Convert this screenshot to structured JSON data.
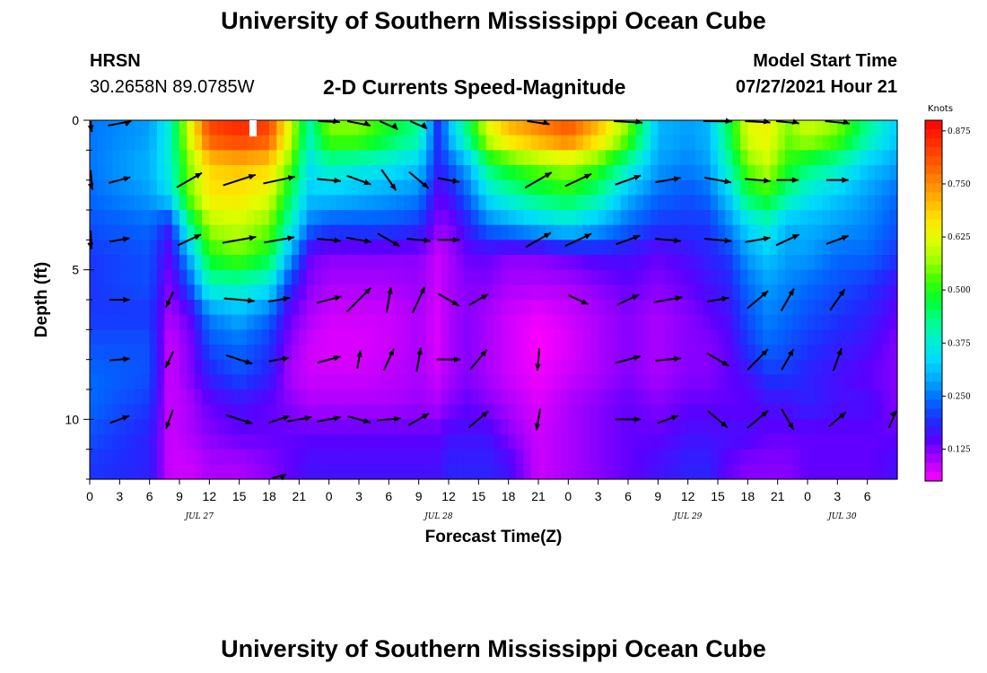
{
  "page_title": "University of Southern Mississippi Ocean Cube",
  "footer_title": "University of Southern Mississippi Ocean Cube",
  "station": {
    "name": "HRSN",
    "coords": "30.2658N  89.0785W"
  },
  "model": {
    "label": "Model Start Time",
    "time": "07/27/2021 Hour 21"
  },
  "colorbar": {
    "unit_label": "Knots",
    "ticks": [
      "0.875",
      "0.750",
      "0.625",
      "0.500",
      "0.375",
      "0.250",
      "0.125"
    ],
    "colors": [
      "#ff00ff",
      "#b000ff",
      "#5a00ff",
      "#1e2cff",
      "#0068ff",
      "#00a6ff",
      "#00d8ff",
      "#00f0d0",
      "#00ff8a",
      "#00ff30",
      "#40ff00",
      "#a0ff00",
      "#e0ff00",
      "#ffe600",
      "#ffb400",
      "#ff8200",
      "#ff5400",
      "#ff2a00",
      "#ff0000"
    ]
  },
  "chart_data": {
    "type": "heatmap",
    "title": "2-D Currents Speed-Magnitude",
    "xlabel": "Forecast Time(Z)",
    "ylabel": "Depth (ft)",
    "xlim": [
      0,
      81
    ],
    "ylim": [
      0,
      12
    ],
    "color_range": [
      0.05,
      0.9
    ],
    "x_ticks": [
      "0",
      "3",
      "6",
      "9",
      "12",
      "15",
      "18",
      "21",
      "0",
      "3",
      "6",
      "9",
      "12",
      "15",
      "18",
      "21",
      "0",
      "3",
      "6",
      "9",
      "12",
      "15",
      "18",
      "21",
      "0",
      "3",
      "6"
    ],
    "y_ticks": [
      "0",
      "5",
      "10"
    ],
    "y_tick_values": [
      0,
      5,
      10
    ],
    "date_labels": [
      {
        "text": "JUL 27",
        "hour": 11
      },
      {
        "text": "JUL 28",
        "hour": 35
      },
      {
        "text": "JUL 29",
        "hour": 60
      },
      {
        "text": "JUL 30",
        "hour": 75.5
      }
    ],
    "depths": [
      0.5,
      1.5,
      2.5,
      3.5,
      4.5,
      5.5,
      6.5,
      7.5,
      8.5,
      9.5,
      10.5,
      11.5
    ],
    "times": [
      0,
      6,
      8,
      10,
      12,
      15,
      18,
      20,
      22,
      24,
      27,
      30,
      33,
      35,
      36,
      38,
      40,
      42,
      45,
      48,
      51,
      54,
      57,
      60,
      62,
      64,
      66,
      68,
      70,
      72,
      75,
      78,
      81
    ],
    "speed": [
      [
        0.25,
        0.28,
        0.38,
        0.62,
        0.82,
        0.85,
        0.82,
        0.62,
        0.4,
        0.55,
        0.55,
        0.48,
        0.42,
        0.18,
        0.3,
        0.45,
        0.62,
        0.7,
        0.75,
        0.8,
        0.7,
        0.55,
        0.3,
        0.28,
        0.3,
        0.45,
        0.62,
        0.64,
        0.55,
        0.6,
        0.55,
        0.42,
        0.32
      ],
      [
        0.25,
        0.3,
        0.38,
        0.55,
        0.68,
        0.7,
        0.68,
        0.55,
        0.35,
        0.4,
        0.38,
        0.36,
        0.32,
        0.18,
        0.22,
        0.3,
        0.45,
        0.5,
        0.55,
        0.58,
        0.52,
        0.4,
        0.28,
        0.26,
        0.28,
        0.4,
        0.55,
        0.6,
        0.5,
        0.45,
        0.4,
        0.32,
        0.28
      ],
      [
        0.24,
        0.28,
        0.35,
        0.55,
        0.66,
        0.66,
        0.62,
        0.46,
        0.32,
        0.32,
        0.3,
        0.28,
        0.26,
        0.14,
        0.16,
        0.24,
        0.35,
        0.4,
        0.45,
        0.48,
        0.42,
        0.3,
        0.24,
        0.22,
        0.24,
        0.32,
        0.46,
        0.5,
        0.42,
        0.36,
        0.32,
        0.28,
        0.24
      ],
      [
        0.22,
        0.24,
        0.18,
        0.42,
        0.58,
        0.6,
        0.55,
        0.4,
        0.25,
        0.22,
        0.22,
        0.22,
        0.2,
        0.12,
        0.12,
        0.18,
        0.25,
        0.28,
        0.32,
        0.35,
        0.3,
        0.24,
        0.2,
        0.2,
        0.2,
        0.26,
        0.34,
        0.38,
        0.3,
        0.3,
        0.28,
        0.26,
        0.22
      ],
      [
        0.2,
        0.22,
        0.14,
        0.3,
        0.5,
        0.54,
        0.48,
        0.3,
        0.14,
        0.12,
        0.12,
        0.12,
        0.12,
        0.08,
        0.1,
        0.14,
        0.14,
        0.12,
        0.12,
        0.14,
        0.16,
        0.16,
        0.14,
        0.16,
        0.18,
        0.2,
        0.28,
        0.32,
        0.28,
        0.28,
        0.24,
        0.24,
        0.2
      ],
      [
        0.2,
        0.22,
        0.12,
        0.22,
        0.4,
        0.4,
        0.36,
        0.2,
        0.12,
        0.1,
        0.1,
        0.1,
        0.11,
        0.08,
        0.1,
        0.12,
        0.12,
        0.1,
        0.1,
        0.1,
        0.12,
        0.14,
        0.12,
        0.14,
        0.16,
        0.18,
        0.24,
        0.28,
        0.26,
        0.24,
        0.22,
        0.2,
        0.16
      ],
      [
        0.2,
        0.2,
        0.1,
        0.14,
        0.26,
        0.3,
        0.24,
        0.14,
        0.1,
        0.08,
        0.08,
        0.08,
        0.1,
        0.07,
        0.1,
        0.12,
        0.1,
        0.08,
        0.06,
        0.08,
        0.1,
        0.12,
        0.1,
        0.12,
        0.14,
        0.16,
        0.22,
        0.26,
        0.24,
        0.22,
        0.2,
        0.18,
        0.14
      ],
      [
        0.22,
        0.22,
        0.08,
        0.12,
        0.22,
        0.24,
        0.2,
        0.12,
        0.08,
        0.07,
        0.07,
        0.08,
        0.1,
        0.07,
        0.1,
        0.12,
        0.1,
        0.08,
        0.05,
        0.07,
        0.1,
        0.12,
        0.1,
        0.12,
        0.12,
        0.14,
        0.2,
        0.24,
        0.22,
        0.2,
        0.18,
        0.16,
        0.12
      ],
      [
        0.24,
        0.22,
        0.08,
        0.12,
        0.18,
        0.22,
        0.18,
        0.1,
        0.08,
        0.08,
        0.08,
        0.09,
        0.1,
        0.08,
        0.1,
        0.12,
        0.1,
        0.08,
        0.06,
        0.08,
        0.1,
        0.12,
        0.1,
        0.12,
        0.12,
        0.14,
        0.16,
        0.2,
        0.2,
        0.18,
        0.16,
        0.14,
        0.12
      ],
      [
        0.24,
        0.2,
        0.08,
        0.1,
        0.14,
        0.16,
        0.14,
        0.12,
        0.1,
        0.1,
        0.1,
        0.1,
        0.11,
        0.1,
        0.12,
        0.14,
        0.12,
        0.1,
        0.07,
        0.1,
        0.12,
        0.14,
        0.12,
        0.14,
        0.14,
        0.14,
        0.14,
        0.16,
        0.16,
        0.18,
        0.16,
        0.16,
        0.12
      ],
      [
        0.22,
        0.18,
        0.08,
        0.1,
        0.12,
        0.14,
        0.14,
        0.14,
        0.14,
        0.14,
        0.14,
        0.14,
        0.14,
        0.14,
        0.16,
        0.16,
        0.16,
        0.12,
        0.08,
        0.1,
        0.12,
        0.14,
        0.14,
        0.16,
        0.16,
        0.16,
        0.16,
        0.14,
        0.14,
        0.14,
        0.14,
        0.14,
        0.14
      ],
      [
        0.2,
        0.18,
        0.08,
        0.08,
        0.1,
        0.1,
        0.12,
        0.14,
        0.16,
        0.16,
        0.16,
        0.16,
        0.16,
        0.16,
        0.18,
        0.18,
        0.18,
        0.16,
        0.08,
        0.1,
        0.12,
        0.14,
        0.16,
        0.18,
        0.18,
        0.14,
        0.12,
        0.12,
        0.12,
        0.14,
        0.14,
        0.14,
        0.16
      ]
    ],
    "vector_depths": [
      0,
      2,
      4,
      6,
      8,
      10,
      12
    ],
    "vectors": [
      {
        "t": 0,
        "rows": [
          [
            0.28,
            80
          ],
          [
            0.24,
            75
          ],
          [
            0.22,
            80
          ],
          [
            0,
            0
          ],
          [
            0,
            0
          ],
          [
            0,
            0
          ],
          [
            0,
            0
          ]
        ]
      },
      {
        "t": 3,
        "rows": [
          [
            0.3,
            -25
          ],
          [
            0.26,
            -15
          ],
          [
            0.24,
            -10
          ],
          [
            0.24,
            0
          ],
          [
            0.24,
            -5
          ],
          [
            0.24,
            -20
          ],
          [
            0,
            0
          ]
        ]
      },
      {
        "t": 8,
        "rows": [
          [
            0,
            0
          ],
          [
            0,
            0
          ],
          [
            0,
            0
          ],
          [
            0.2,
            115
          ],
          [
            0.22,
            115
          ],
          [
            0.24,
            110
          ],
          [
            0,
            0
          ]
        ]
      },
      {
        "t": 10,
        "rows": [
          [
            0,
            0
          ],
          [
            0.34,
            -30
          ],
          [
            0.3,
            -25
          ],
          [
            0,
            0
          ],
          [
            0,
            0
          ],
          [
            0,
            0
          ],
          [
            0,
            0
          ]
        ]
      },
      {
        "t": 15,
        "rows": [
          [
            0,
            0
          ],
          [
            0.4,
            -18
          ],
          [
            0.4,
            -10
          ],
          [
            0.36,
            5
          ],
          [
            0.32,
            18
          ],
          [
            0.32,
            18
          ],
          [
            0,
            0
          ]
        ]
      },
      {
        "t": 19,
        "rows": [
          [
            0,
            0
          ],
          [
            0.38,
            -12
          ],
          [
            0.36,
            -10
          ],
          [
            0.26,
            -10
          ],
          [
            0.24,
            -10
          ],
          [
            0.26,
            -18
          ],
          [
            0.2,
            -35
          ]
        ]
      },
      {
        "t": 21,
        "rows": [
          [
            0,
            0
          ],
          [
            0,
            0
          ],
          [
            0,
            0
          ],
          [
            0,
            0
          ],
          [
            0,
            0
          ],
          [
            0.3,
            -10
          ],
          [
            0,
            0
          ]
        ]
      },
      {
        "t": 24,
        "rows": [
          [
            0.26,
            10
          ],
          [
            0.28,
            5
          ],
          [
            0.28,
            5
          ],
          [
            0.3,
            -15
          ],
          [
            0.28,
            -15
          ],
          [
            0.28,
            -10
          ],
          [
            0,
            0
          ]
        ]
      },
      {
        "t": 27,
        "rows": [
          [
            0.3,
            25
          ],
          [
            0.3,
            20
          ],
          [
            0.3,
            10
          ],
          [
            0.4,
            -45
          ],
          [
            0.22,
            -80
          ],
          [
            0.28,
            15
          ],
          [
            0,
            0
          ]
        ]
      },
      {
        "t": 30,
        "rows": [
          [
            0.3,
            45
          ],
          [
            0.3,
            55
          ],
          [
            0.3,
            30
          ],
          [
            0.3,
            -80
          ],
          [
            0.28,
            -65
          ],
          [
            0.28,
            -5
          ],
          [
            0,
            0
          ]
        ]
      },
      {
        "t": 33,
        "rows": [
          [
            0.28,
            45
          ],
          [
            0.3,
            40
          ],
          [
            0.28,
            5
          ],
          [
            0.34,
            -65
          ],
          [
            0.28,
            -80
          ],
          [
            0.28,
            -30
          ],
          [
            0,
            0
          ]
        ]
      },
      {
        "t": 36,
        "rows": [
          [
            0,
            0
          ],
          [
            0.26,
            10
          ],
          [
            0.26,
            0
          ],
          [
            0.28,
            30
          ],
          [
            0.28,
            0
          ],
          [
            0,
            0
          ],
          [
            0,
            0
          ]
        ]
      },
      {
        "t": 39,
        "rows": [
          [
            0,
            0
          ],
          [
            0,
            0
          ],
          [
            0,
            0
          ],
          [
            0.26,
            -30
          ],
          [
            0.3,
            -50
          ],
          [
            0.3,
            -40
          ],
          [
            0,
            0
          ]
        ]
      },
      {
        "t": 45,
        "rows": [
          [
            0.28,
            20
          ],
          [
            0.36,
            -30
          ],
          [
            0.34,
            -30
          ],
          [
            0,
            0
          ],
          [
            0.26,
            95
          ],
          [
            0.26,
            100
          ],
          [
            0,
            0
          ]
        ]
      },
      {
        "t": 49,
        "rows": [
          [
            0,
            0
          ],
          [
            0.34,
            -25
          ],
          [
            0.34,
            -25
          ],
          [
            0.26,
            25
          ],
          [
            0,
            0
          ],
          [
            0,
            0
          ],
          [
            0,
            0
          ]
        ]
      },
      {
        "t": 54,
        "rows": [
          [
            0.34,
            10
          ],
          [
            0.32,
            -20
          ],
          [
            0.3,
            -20
          ],
          [
            0.28,
            -25
          ],
          [
            0.3,
            -15
          ],
          [
            0.3,
            0
          ],
          [
            0,
            0
          ]
        ]
      },
      {
        "t": 58,
        "rows": [
          [
            0,
            0
          ],
          [
            0.3,
            -10
          ],
          [
            0.3,
            5
          ],
          [
            0.34,
            -10
          ],
          [
            0.3,
            -5
          ],
          [
            0.26,
            -20
          ],
          [
            0,
            0
          ]
        ]
      },
      {
        "t": 63,
        "rows": [
          [
            0.34,
            5
          ],
          [
            0.32,
            10
          ],
          [
            0.32,
            5
          ],
          [
            0.26,
            -10
          ],
          [
            0.3,
            30
          ],
          [
            0.3,
            40
          ],
          [
            0,
            0
          ]
        ]
      },
      {
        "t": 67,
        "rows": [
          [
            0.3,
            10
          ],
          [
            0.3,
            5
          ],
          [
            0.3,
            -10
          ],
          [
            0.32,
            -40
          ],
          [
            0.34,
            -45
          ],
          [
            0.32,
            -40
          ],
          [
            0,
            0
          ]
        ]
      },
      {
        "t": 70,
        "rows": [
          [
            0.28,
            15
          ],
          [
            0.26,
            0
          ],
          [
            0.3,
            -25
          ],
          [
            0.3,
            -60
          ],
          [
            0.28,
            -60
          ],
          [
            0.28,
            60
          ],
          [
            0,
            0
          ]
        ]
      },
      {
        "t": 75,
        "rows": [
          [
            0.3,
            15
          ],
          [
            0.26,
            0
          ],
          [
            0.28,
            -20
          ],
          [
            0.3,
            -55
          ],
          [
            0.28,
            -70
          ],
          [
            0.26,
            -40
          ],
          [
            0,
            0
          ]
        ]
      },
      {
        "t": 81,
        "rows": [
          [
            0,
            0
          ],
          [
            0,
            0
          ],
          [
            0,
            0
          ],
          [
            0,
            0
          ],
          [
            0,
            0
          ],
          [
            0.28,
            -45
          ],
          [
            0,
            0
          ]
        ]
      }
    ]
  }
}
